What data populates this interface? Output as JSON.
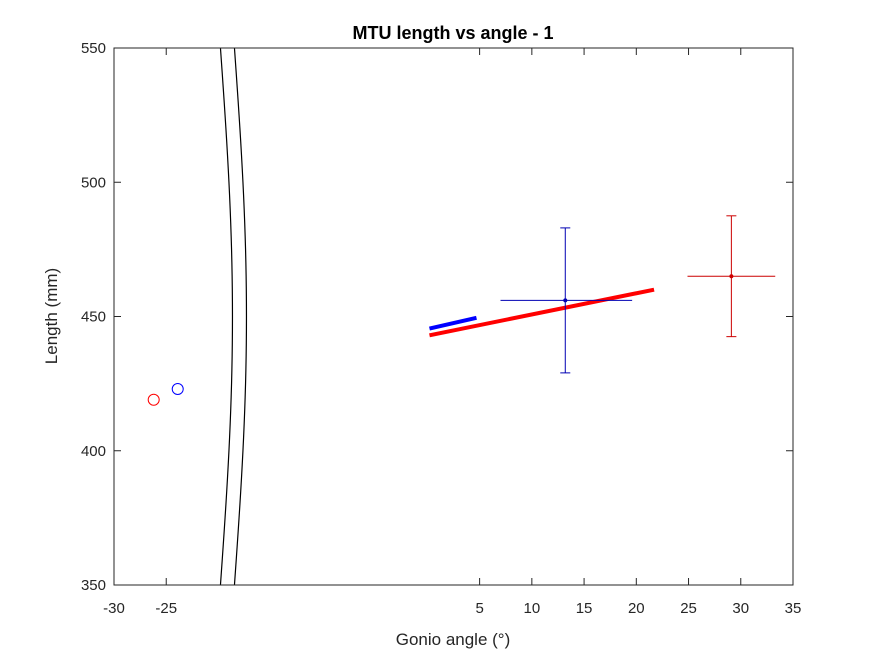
{
  "chart_data": {
    "type": "line",
    "title": "MTU length vs angle - 1",
    "xlabel": "Gonio angle (°)",
    "ylabel": "Length (mm)",
    "xlim": [
      -30,
      35
    ],
    "ylim": [
      350,
      550
    ],
    "x_ticks": [
      -30,
      -25,
      5,
      10,
      15,
      20,
      25,
      30,
      35
    ],
    "x_tick_labels": [
      "-30",
      "-25",
      "5",
      "10",
      "15",
      "20",
      "25",
      "30",
      "35"
    ],
    "y_ticks": [
      350,
      400,
      450,
      500,
      550
    ],
    "y_tick_labels": [
      "350",
      "400",
      "450",
      "500",
      "550"
    ],
    "grid": false,
    "axis_break": {
      "x_from": -20,
      "x_to": 0
    },
    "colors": {
      "blue": "#0000ff",
      "red": "#ff0000",
      "blue_dark": "#0000b3",
      "red_dark": "#cc0000",
      "axis": "#262626"
    },
    "series": [
      {
        "color": "blue",
        "type": "line",
        "x": [
          0.2,
          4.7
        ],
        "y": [
          445.5,
          449.5
        ]
      },
      {
        "color": "red",
        "type": "line",
        "x": [
          0.2,
          21.7
        ],
        "y": [
          443,
          460
        ]
      },
      {
        "color": "blue",
        "type": "errorbar",
        "x": 13.2,
        "y": 456,
        "x_err": [
          6.2,
          6.4
        ],
        "y_err": [
          27,
          27
        ]
      },
      {
        "color": "red",
        "type": "errorbar",
        "x": 29.1,
        "y": 465,
        "x_err": [
          4.2,
          4.2
        ],
        "y_err": [
          22.5,
          22.5
        ]
      },
      {
        "color": "red",
        "type": "marker",
        "marker": "circle",
        "x": -26.2,
        "y": 419
      },
      {
        "color": "blue",
        "type": "marker",
        "marker": "circle",
        "x": -23.9,
        "y": 423
      }
    ]
  }
}
